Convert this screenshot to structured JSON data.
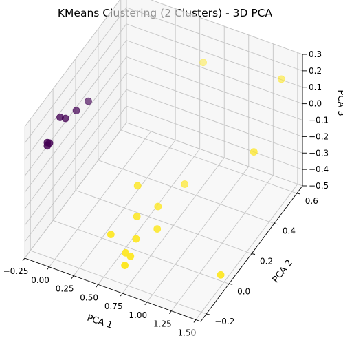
{
  "chart_data": {
    "type": "scatter3d",
    "title": "KMeans Clustering (2 Clusters) - 3D PCA",
    "xlabel": "PCA 1",
    "ylabel": "PCA 2",
    "zlabel": "PCA 3",
    "xticks": [
      "−0.25",
      "0.00",
      "0.25",
      "0.50",
      "0.75",
      "1.00",
      "1.25",
      "1.50"
    ],
    "yticks": [
      "−0.2",
      "0.0",
      "0.2",
      "0.4",
      "0.6"
    ],
    "zticks": [
      "−0.5",
      "−0.4",
      "−0.3",
      "−0.2",
      "−0.1",
      "0.0",
      "0.1",
      "0.2",
      "0.3"
    ],
    "xlim": [
      -0.25,
      1.55
    ],
    "ylim": [
      -0.25,
      0.65
    ],
    "zlim": [
      -0.5,
      0.3
    ],
    "grid": true,
    "colors": {
      "cluster_0": "#440154",
      "cluster_1": "#fde725"
    },
    "series": [
      {
        "cluster": 0,
        "points": [
          {
            "x": -0.25,
            "y": -0.05,
            "z": 0.02
          },
          {
            "x": -0.25,
            "y": -0.05,
            "z": 0.0
          },
          {
            "x": -0.24,
            "y": -0.04,
            "z": 0.01
          },
          {
            "x": -0.18,
            "y": 0.05,
            "z": 0.09
          },
          {
            "x": -0.15,
            "y": 0.12,
            "z": 0.08
          },
          {
            "x": -0.2,
            "y": 0.02,
            "z": 0.12
          },
          {
            "x": -0.12,
            "y": 0.2,
            "z": 0.07
          }
        ]
      },
      {
        "cluster": 1,
        "points": [
          {
            "x": 0.65,
            "y": 0.55,
            "z": 0.15
          },
          {
            "x": 1.45,
            "y": 0.55,
            "z": 0.22
          },
          {
            "x": 1.4,
            "y": 0.35,
            "z": -0.05
          },
          {
            "x": 1.35,
            "y": 0.1,
            "z": -0.58
          },
          {
            "x": 0.5,
            "y": 0.1,
            "z": -0.22
          },
          {
            "x": 0.75,
            "y": 0.3,
            "z": -0.34
          },
          {
            "x": 0.55,
            "y": 0.05,
            "z": -0.35
          },
          {
            "x": 0.65,
            "y": 0.15,
            "z": -0.36
          },
          {
            "x": 0.4,
            "y": -0.05,
            "z": -0.4
          },
          {
            "x": 0.6,
            "y": 0.0,
            "z": -0.43
          },
          {
            "x": 0.7,
            "y": 0.1,
            "z": -0.44
          },
          {
            "x": 0.55,
            "y": -0.05,
            "z": -0.48
          },
          {
            "x": 0.6,
            "y": -0.05,
            "z": -0.49
          },
          {
            "x": 0.6,
            "y": -0.1,
            "z": -0.5
          }
        ]
      }
    ]
  }
}
